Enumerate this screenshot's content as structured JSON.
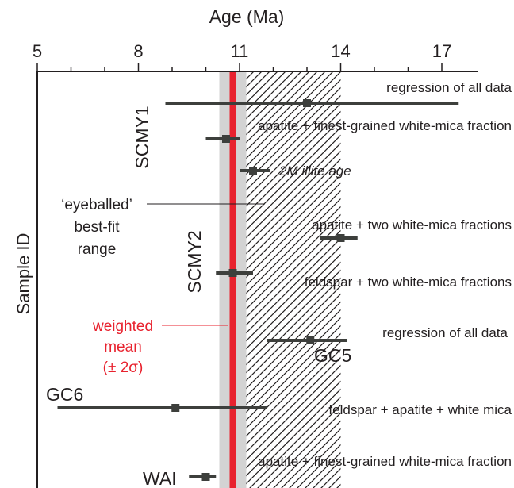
{
  "chart_data": {
    "type": "error-bar",
    "xlabel": "Age (Ma)",
    "ylabel": "Sample ID",
    "xlim": [
      5,
      18
    ],
    "x_ticks": [
      5,
      8,
      11,
      14,
      17
    ],
    "x_tick_labels": [
      "5",
      "8",
      "11",
      "14",
      "17"
    ],
    "grid": false,
    "colors": {
      "ink": "#231f20",
      "points": "#3d3f3c",
      "weighted_mean": "#e8222e",
      "band": "#d3d3d3",
      "hatch": "#231f20"
    },
    "weighted_mean": {
      "value": 10.8,
      "lower": 10.4,
      "upper": 11.2,
      "label": [
        "weighted",
        "mean",
        "(± 2σ)"
      ]
    },
    "eyeballed_range": {
      "lower": 10.4,
      "upper": 14.0,
      "label": [
        "‘eyeballed’",
        "best-fit",
        "range"
      ]
    },
    "sample_labels": [
      "SCMY1",
      "SCMY2",
      "GC5",
      "GC6",
      "WAI"
    ],
    "series": [
      {
        "sample": "SCMY1",
        "label": "regression of all data",
        "italic": false,
        "age": 13.0,
        "lower": 8.8,
        "upper": 17.5
      },
      {
        "sample": "SCMY1",
        "label": "apatite + finest-grained white-mica fraction",
        "italic": false,
        "age": 10.6,
        "lower": 10.0,
        "upper": 11.0
      },
      {
        "sample": "SCMY2",
        "label": "2M illite age",
        "italic": true,
        "age": 11.4,
        "lower": 11.0,
        "upper": 11.9
      },
      {
        "sample": "SCMY2",
        "label": "apatite + two white-mica fractions",
        "italic": false,
        "age": 14.0,
        "lower": 13.4,
        "upper": 14.5
      },
      {
        "sample": "SCMY2",
        "label": "feldspar + two white-mica fractions",
        "italic": false,
        "age": 10.8,
        "lower": 10.3,
        "upper": 11.4
      },
      {
        "sample": "GC5",
        "label": "regression of all data",
        "italic": false,
        "age": 13.1,
        "lower": 11.8,
        "upper": 14.2
      },
      {
        "sample": "GC6",
        "label": "feldspar + apatite + white mica",
        "italic": false,
        "age": 9.1,
        "lower": 5.6,
        "upper": 11.8
      },
      {
        "sample": "WAI",
        "label": "apatite + finest-grained white-mica fraction",
        "italic": false,
        "age": 10.0,
        "lower": 9.5,
        "upper": 10.3
      }
    ]
  }
}
